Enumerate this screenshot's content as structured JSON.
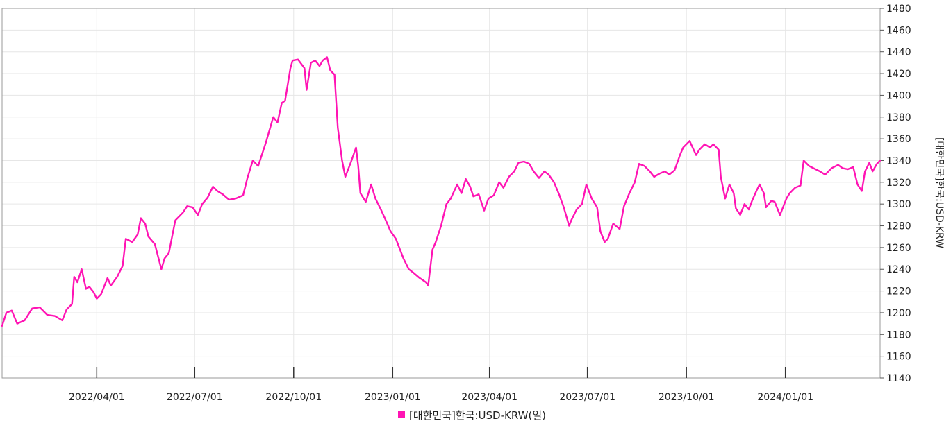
{
  "chart_data": {
    "type": "line",
    "ylabel": "[대한민국]한국:USD-KRW",
    "ylim": [
      1140,
      1480
    ],
    "yticks": [
      1140,
      1160,
      1180,
      1200,
      1220,
      1240,
      1260,
      1280,
      1300,
      1320,
      1340,
      1360,
      1380,
      1400,
      1420,
      1440,
      1460,
      1480
    ],
    "xlim": [
      "2022-01-03",
      "2024-03-29"
    ],
    "xticks": [
      {
        "date": "2022-04-01",
        "label": "2022/04/01"
      },
      {
        "date": "2022-07-01",
        "label": "2022/07/01"
      },
      {
        "date": "2022-10-01",
        "label": "2022/10/01"
      },
      {
        "date": "2023-01-01",
        "label": "2023/01/01"
      },
      {
        "date": "2023-04-01",
        "label": "2023/04/01"
      },
      {
        "date": "2023-07-01",
        "label": "2023/07/01"
      },
      {
        "date": "2023-10-01",
        "label": "2023/10/01"
      },
      {
        "date": "2024-01-01",
        "label": "2024/01/01"
      }
    ],
    "grid": true,
    "legend_position": "bottom",
    "series": [
      {
        "name": "[대한민국]한국:USD-KRW(일)",
        "color": "#ff14b4",
        "points": [
          [
            "2022-01-03",
            1188
          ],
          [
            "2022-01-07",
            1200
          ],
          [
            "2022-01-12",
            1202
          ],
          [
            "2022-01-17",
            1190
          ],
          [
            "2022-01-24",
            1193
          ],
          [
            "2022-01-31",
            1204
          ],
          [
            "2022-02-07",
            1205
          ],
          [
            "2022-02-14",
            1198
          ],
          [
            "2022-02-21",
            1197
          ],
          [
            "2022-02-28",
            1193
          ],
          [
            "2022-03-04",
            1203
          ],
          [
            "2022-03-09",
            1208
          ],
          [
            "2022-03-11",
            1233
          ],
          [
            "2022-03-14",
            1228
          ],
          [
            "2022-03-18",
            1240
          ],
          [
            "2022-03-22",
            1222
          ],
          [
            "2022-03-25",
            1224
          ],
          [
            "2022-03-29",
            1219
          ],
          [
            "2022-04-01",
            1213
          ],
          [
            "2022-04-05",
            1217
          ],
          [
            "2022-04-11",
            1232
          ],
          [
            "2022-04-14",
            1225
          ],
          [
            "2022-04-20",
            1233
          ],
          [
            "2022-04-25",
            1243
          ],
          [
            "2022-04-28",
            1268
          ],
          [
            "2022-05-04",
            1265
          ],
          [
            "2022-05-09",
            1272
          ],
          [
            "2022-05-12",
            1287
          ],
          [
            "2022-05-16",
            1282
          ],
          [
            "2022-05-19",
            1270
          ],
          [
            "2022-05-25",
            1263
          ],
          [
            "2022-05-31",
            1240
          ],
          [
            "2022-06-03",
            1250
          ],
          [
            "2022-06-07",
            1255
          ],
          [
            "2022-06-13",
            1285
          ],
          [
            "2022-06-20",
            1292
          ],
          [
            "2022-06-24",
            1298
          ],
          [
            "2022-06-29",
            1297
          ],
          [
            "2022-07-04",
            1290
          ],
          [
            "2022-07-08",
            1300
          ],
          [
            "2022-07-13",
            1306
          ],
          [
            "2022-07-18",
            1316
          ],
          [
            "2022-07-22",
            1312
          ],
          [
            "2022-07-27",
            1309
          ],
          [
            "2022-08-02",
            1304
          ],
          [
            "2022-08-08",
            1305
          ],
          [
            "2022-08-15",
            1308
          ],
          [
            "2022-08-19",
            1324
          ],
          [
            "2022-08-24",
            1340
          ],
          [
            "2022-08-29",
            1335
          ],
          [
            "2022-09-05",
            1356
          ],
          [
            "2022-09-12",
            1380
          ],
          [
            "2022-09-16",
            1375
          ],
          [
            "2022-09-20",
            1393
          ],
          [
            "2022-09-23",
            1395
          ],
          [
            "2022-09-28",
            1425
          ],
          [
            "2022-09-30",
            1432
          ],
          [
            "2022-10-05",
            1433
          ],
          [
            "2022-10-11",
            1425
          ],
          [
            "2022-10-13",
            1405
          ],
          [
            "2022-10-17",
            1430
          ],
          [
            "2022-10-21",
            1432
          ],
          [
            "2022-10-25",
            1427
          ],
          [
            "2022-10-28",
            1432
          ],
          [
            "2022-11-01",
            1435
          ],
          [
            "2022-11-04",
            1423
          ],
          [
            "2022-11-08",
            1419
          ],
          [
            "2022-11-11",
            1370
          ],
          [
            "2022-11-15",
            1340
          ],
          [
            "2022-11-18",
            1325
          ],
          [
            "2022-11-23",
            1338
          ],
          [
            "2022-11-28",
            1352
          ],
          [
            "2022-11-30",
            1335
          ],
          [
            "2022-12-02",
            1310
          ],
          [
            "2022-12-07",
            1302
          ],
          [
            "2022-12-12",
            1318
          ],
          [
            "2022-12-16",
            1305
          ],
          [
            "2022-12-21",
            1295
          ],
          [
            "2022-12-27",
            1282
          ],
          [
            "2022-12-30",
            1275
          ],
          [
            "2023-01-04",
            1268
          ],
          [
            "2023-01-11",
            1250
          ],
          [
            "2023-01-16",
            1240
          ],
          [
            "2023-01-20",
            1237
          ],
          [
            "2023-01-26",
            1232
          ],
          [
            "2023-02-01",
            1228
          ],
          [
            "2023-02-03",
            1225
          ],
          [
            "2023-02-07",
            1258
          ],
          [
            "2023-02-10",
            1265
          ],
          [
            "2023-02-15",
            1280
          ],
          [
            "2023-02-20",
            1300
          ],
          [
            "2023-02-24",
            1305
          ],
          [
            "2023-03-02",
            1318
          ],
          [
            "2023-03-06",
            1310
          ],
          [
            "2023-03-10",
            1323
          ],
          [
            "2023-03-14",
            1316
          ],
          [
            "2023-03-17",
            1307
          ],
          [
            "2023-03-22",
            1309
          ],
          [
            "2023-03-27",
            1294
          ],
          [
            "2023-03-31",
            1305
          ],
          [
            "2023-04-05",
            1308
          ],
          [
            "2023-04-10",
            1320
          ],
          [
            "2023-04-14",
            1315
          ],
          [
            "2023-04-19",
            1325
          ],
          [
            "2023-04-24",
            1330
          ],
          [
            "2023-04-28",
            1338
          ],
          [
            "2023-05-03",
            1339
          ],
          [
            "2023-05-08",
            1337
          ],
          [
            "2023-05-12",
            1330
          ],
          [
            "2023-05-17",
            1324
          ],
          [
            "2023-05-22",
            1330
          ],
          [
            "2023-05-26",
            1327
          ],
          [
            "2023-05-31",
            1320
          ],
          [
            "2023-06-05",
            1308
          ],
          [
            "2023-06-09",
            1297
          ],
          [
            "2023-06-14",
            1280
          ],
          [
            "2023-06-16",
            1285
          ],
          [
            "2023-06-21",
            1295
          ],
          [
            "2023-06-26",
            1300
          ],
          [
            "2023-06-30",
            1318
          ],
          [
            "2023-07-05",
            1305
          ],
          [
            "2023-07-10",
            1297
          ],
          [
            "2023-07-13",
            1275
          ],
          [
            "2023-07-17",
            1265
          ],
          [
            "2023-07-20",
            1268
          ],
          [
            "2023-07-25",
            1282
          ],
          [
            "2023-07-31",
            1277
          ],
          [
            "2023-08-04",
            1298
          ],
          [
            "2023-08-09",
            1310
          ],
          [
            "2023-08-14",
            1320
          ],
          [
            "2023-08-18",
            1337
          ],
          [
            "2023-08-23",
            1335
          ],
          [
            "2023-08-28",
            1330
          ],
          [
            "2023-09-01",
            1325
          ],
          [
            "2023-09-06",
            1328
          ],
          [
            "2023-09-11",
            1330
          ],
          [
            "2023-09-15",
            1327
          ],
          [
            "2023-09-20",
            1331
          ],
          [
            "2023-09-25",
            1345
          ],
          [
            "2023-09-28",
            1352
          ],
          [
            "2023-10-04",
            1358
          ],
          [
            "2023-10-10",
            1345
          ],
          [
            "2023-10-13",
            1350
          ],
          [
            "2023-10-18",
            1355
          ],
          [
            "2023-10-23",
            1352
          ],
          [
            "2023-10-26",
            1355
          ],
          [
            "2023-10-31",
            1350
          ],
          [
            "2023-11-02",
            1325
          ],
          [
            "2023-11-06",
            1305
          ],
          [
            "2023-11-10",
            1318
          ],
          [
            "2023-11-14",
            1310
          ],
          [
            "2023-11-16",
            1296
          ],
          [
            "2023-11-20",
            1290
          ],
          [
            "2023-11-24",
            1300
          ],
          [
            "2023-11-28",
            1295
          ],
          [
            "2023-12-01",
            1303
          ],
          [
            "2023-12-05",
            1312
          ],
          [
            "2023-12-08",
            1318
          ],
          [
            "2023-12-12",
            1310
          ],
          [
            "2023-12-14",
            1297
          ],
          [
            "2023-12-19",
            1303
          ],
          [
            "2023-12-22",
            1302
          ],
          [
            "2023-12-27",
            1290
          ],
          [
            "2024-01-02",
            1305
          ],
          [
            "2024-01-05",
            1310
          ],
          [
            "2024-01-10",
            1315
          ],
          [
            "2024-01-15",
            1317
          ],
          [
            "2024-01-18",
            1340
          ],
          [
            "2024-01-23",
            1335
          ],
          [
            "2024-01-29",
            1332
          ],
          [
            "2024-02-02",
            1330
          ],
          [
            "2024-02-07",
            1327
          ],
          [
            "2024-02-13",
            1333
          ],
          [
            "2024-02-19",
            1336
          ],
          [
            "2024-02-23",
            1333
          ],
          [
            "2024-02-28",
            1332
          ],
          [
            "2024-03-04",
            1334
          ],
          [
            "2024-03-08",
            1318
          ],
          [
            "2024-03-12",
            1312
          ],
          [
            "2024-03-15",
            1330
          ],
          [
            "2024-03-19",
            1338
          ],
          [
            "2024-03-22",
            1330
          ],
          [
            "2024-03-26",
            1337
          ],
          [
            "2024-03-29",
            1340
          ]
        ]
      }
    ]
  }
}
